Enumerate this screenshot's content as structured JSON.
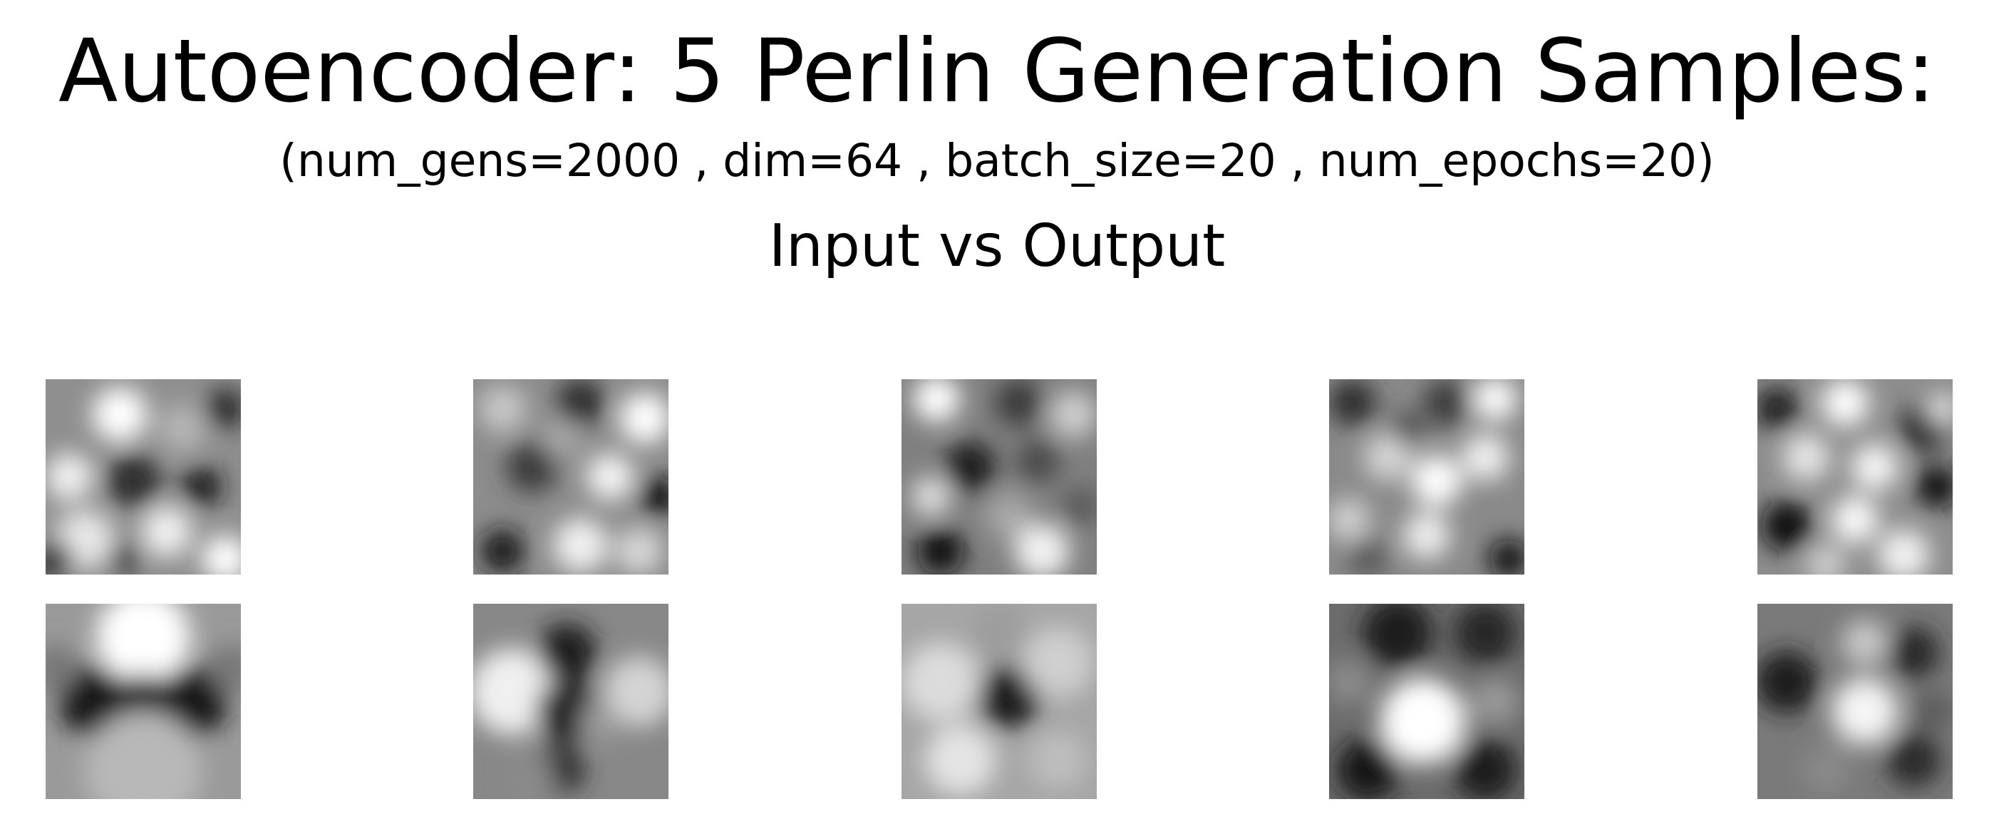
{
  "figure": {
    "title": "Autoencoder: 5 Perlin Generation Samples:",
    "subtitle": "(num_gens=2000 , dim=64 , batch_size=20 , num_epochs=20)",
    "comparison_title": "Input vs Output"
  },
  "grid": {
    "rows": 2,
    "columns": 5,
    "samples": [
      {
        "input": {
          "base": "#8f8f8f",
          "blobs": [
            [
              0.38,
              0.18,
              0.14,
              "#ffffff"
            ],
            [
              0.12,
              0.5,
              0.12,
              "#f2f2f2"
            ],
            [
              0.45,
              0.52,
              0.14,
              "#2e2e2e"
            ],
            [
              0.8,
              0.55,
              0.1,
              "#151515"
            ],
            [
              0.2,
              0.82,
              0.15,
              "#e8e8e8"
            ],
            [
              0.62,
              0.78,
              0.13,
              "#f0f0f0"
            ],
            [
              0.05,
              0.92,
              0.09,
              "#0d0d0d"
            ],
            [
              0.92,
              0.15,
              0.1,
              "#262626"
            ],
            [
              0.7,
              0.25,
              0.12,
              "#b5b5b5"
            ],
            [
              0.92,
              0.92,
              0.12,
              "#ffffff"
            ],
            [
              0.4,
              0.92,
              0.08,
              "#3b3b3b"
            ]
          ]
        },
        "output": {
          "base": "#9a9a9a",
          "blobs": [
            [
              0.5,
              0.17,
              0.24,
              "#ffffff"
            ],
            [
              0.25,
              0.5,
              0.18,
              "#151515"
            ],
            [
              0.75,
              0.5,
              0.18,
              "#151515"
            ],
            [
              0.5,
              0.52,
              0.16,
              "#1d1d1d"
            ],
            [
              0.5,
              0.85,
              0.3,
              "#b8b8b8"
            ],
            [
              0.05,
              0.33,
              0.12,
              "#777777"
            ],
            [
              0.95,
              0.33,
              0.12,
              "#777777"
            ]
          ]
        }
      },
      {
        "input": {
          "base": "#8c8c8c",
          "blobs": [
            [
              0.15,
              0.15,
              0.12,
              "#c8c8c8"
            ],
            [
              0.55,
              0.12,
              0.12,
              "#2b2b2b"
            ],
            [
              0.88,
              0.2,
              0.13,
              "#ffffff"
            ],
            [
              0.3,
              0.45,
              0.13,
              "#3a3a3a"
            ],
            [
              0.7,
              0.5,
              0.12,
              "#f5f5f5"
            ],
            [
              0.95,
              0.6,
              0.1,
              "#111111"
            ],
            [
              0.15,
              0.88,
              0.11,
              "#121212"
            ],
            [
              0.55,
              0.85,
              0.14,
              "#f0f0f0"
            ],
            [
              0.85,
              0.88,
              0.12,
              "#d8d8d8"
            ],
            [
              0.45,
              0.3,
              0.1,
              "#a8a8a8"
            ]
          ]
        },
        "output": {
          "base": "#888888",
          "blobs": [
            [
              0.2,
              0.45,
              0.22,
              "#f0f0f0"
            ],
            [
              0.48,
              0.25,
              0.15,
              "#1a1a1a"
            ],
            [
              0.48,
              0.55,
              0.16,
              "#242424"
            ],
            [
              0.45,
              0.85,
              0.12,
              "#2a2a2a"
            ],
            [
              0.85,
              0.45,
              0.18,
              "#d4d4d4"
            ],
            [
              0.65,
              0.6,
              0.1,
              "#9c9c9c"
            ],
            [
              0.3,
              0.9,
              0.12,
              "#8a8a8a"
            ]
          ]
        }
      },
      {
        "input": {
          "base": "#808080",
          "blobs": [
            [
              0.18,
              0.1,
              0.12,
              "#ffffff"
            ],
            [
              0.6,
              0.12,
              0.12,
              "#3a3a3a"
            ],
            [
              0.88,
              0.18,
              0.12,
              "#cfcfcf"
            ],
            [
              0.35,
              0.45,
              0.13,
              "#1c1c1c"
            ],
            [
              0.7,
              0.42,
              0.11,
              "#4a4a4a"
            ],
            [
              0.15,
              0.6,
              0.1,
              "#e0e0e0"
            ],
            [
              0.55,
              0.7,
              0.12,
              "#a9a9a9"
            ],
            [
              0.2,
              0.88,
              0.12,
              "#0e0e0e"
            ],
            [
              0.72,
              0.88,
              0.14,
              "#f2f2f2"
            ],
            [
              0.92,
              0.65,
              0.1,
              "#5a5a5a"
            ]
          ]
        },
        "output": {
          "base": "#a6a6a6",
          "blobs": [
            [
              0.55,
              0.48,
              0.16,
              "#1b1b1b"
            ],
            [
              0.2,
              0.4,
              0.2,
              "#dcdcdc"
            ],
            [
              0.8,
              0.3,
              0.18,
              "#cfcfcf"
            ],
            [
              0.3,
              0.8,
              0.18,
              "#e4e4e4"
            ],
            [
              0.8,
              0.8,
              0.15,
              "#bdbdbd"
            ],
            [
              0.5,
              0.15,
              0.15,
              "#9d9d9d"
            ]
          ]
        }
      },
      {
        "input": {
          "base": "#8a8a8a",
          "blobs": [
            [
              0.12,
              0.12,
              0.12,
              "#2d2d2d"
            ],
            [
              0.6,
              0.12,
              0.12,
              "#3d3d3d"
            ],
            [
              0.85,
              0.1,
              0.11,
              "#ffffff"
            ],
            [
              0.3,
              0.4,
              0.12,
              "#d6d6d6"
            ],
            [
              0.8,
              0.4,
              0.12,
              "#f0f0f0"
            ],
            [
              0.55,
              0.52,
              0.13,
              "#ffffff"
            ],
            [
              0.1,
              0.72,
              0.11,
              "#cfcfcf"
            ],
            [
              0.5,
              0.8,
              0.12,
              "#eeeeee"
            ],
            [
              0.92,
              0.92,
              0.1,
              "#0d0d0d"
            ],
            [
              0.2,
              0.92,
              0.1,
              "#5a5a5a"
            ],
            [
              0.4,
              0.25,
              0.08,
              "#4a4a4a"
            ]
          ]
        },
        "output": {
          "base": "#6c6c6c",
          "blobs": [
            [
              0.35,
              0.15,
              0.18,
              "#1f1f1f"
            ],
            [
              0.8,
              0.15,
              0.16,
              "#262626"
            ],
            [
              0.48,
              0.6,
              0.22,
              "#ffffff"
            ],
            [
              0.2,
              0.85,
              0.16,
              "#141414"
            ],
            [
              0.8,
              0.85,
              0.16,
              "#1a1a1a"
            ],
            [
              0.85,
              0.5,
              0.12,
              "#9a9a9a"
            ],
            [
              0.1,
              0.4,
              0.12,
              "#8a8a8a"
            ]
          ]
        }
      },
      {
        "input": {
          "base": "#8d8d8d",
          "blobs": [
            [
              0.1,
              0.15,
              0.11,
              "#1e1e1e"
            ],
            [
              0.45,
              0.12,
              0.12,
              "#ffffff"
            ],
            [
              0.85,
              0.25,
              0.12,
              "#2b2b2b"
            ],
            [
              0.25,
              0.4,
              0.12,
              "#e6e6e6"
            ],
            [
              0.6,
              0.45,
              0.12,
              "#f5f5f5"
            ],
            [
              0.92,
              0.55,
              0.11,
              "#111111"
            ],
            [
              0.15,
              0.75,
              0.13,
              "#0e0e0e"
            ],
            [
              0.5,
              0.72,
              0.12,
              "#fafafa"
            ],
            [
              0.75,
              0.9,
              0.13,
              "#f2f2f2"
            ],
            [
              0.35,
              0.95,
              0.1,
              "#d0d0d0"
            ],
            [
              0.95,
              0.15,
              0.08,
              "#e0e0e0"
            ]
          ]
        },
        "output": {
          "base": "#7a7a7a",
          "blobs": [
            [
              0.15,
              0.4,
              0.16,
              "#1a1a1a"
            ],
            [
              0.8,
              0.25,
              0.13,
              "#262626"
            ],
            [
              0.55,
              0.55,
              0.17,
              "#f5f5f5"
            ],
            [
              0.55,
              0.2,
              0.12,
              "#c8c8c8"
            ],
            [
              0.8,
              0.8,
              0.14,
              "#2b2b2b"
            ],
            [
              0.35,
              0.85,
              0.12,
              "#8a8a8a"
            ],
            [
              0.9,
              0.55,
              0.1,
              "#5a5a5a"
            ]
          ]
        }
      }
    ]
  }
}
